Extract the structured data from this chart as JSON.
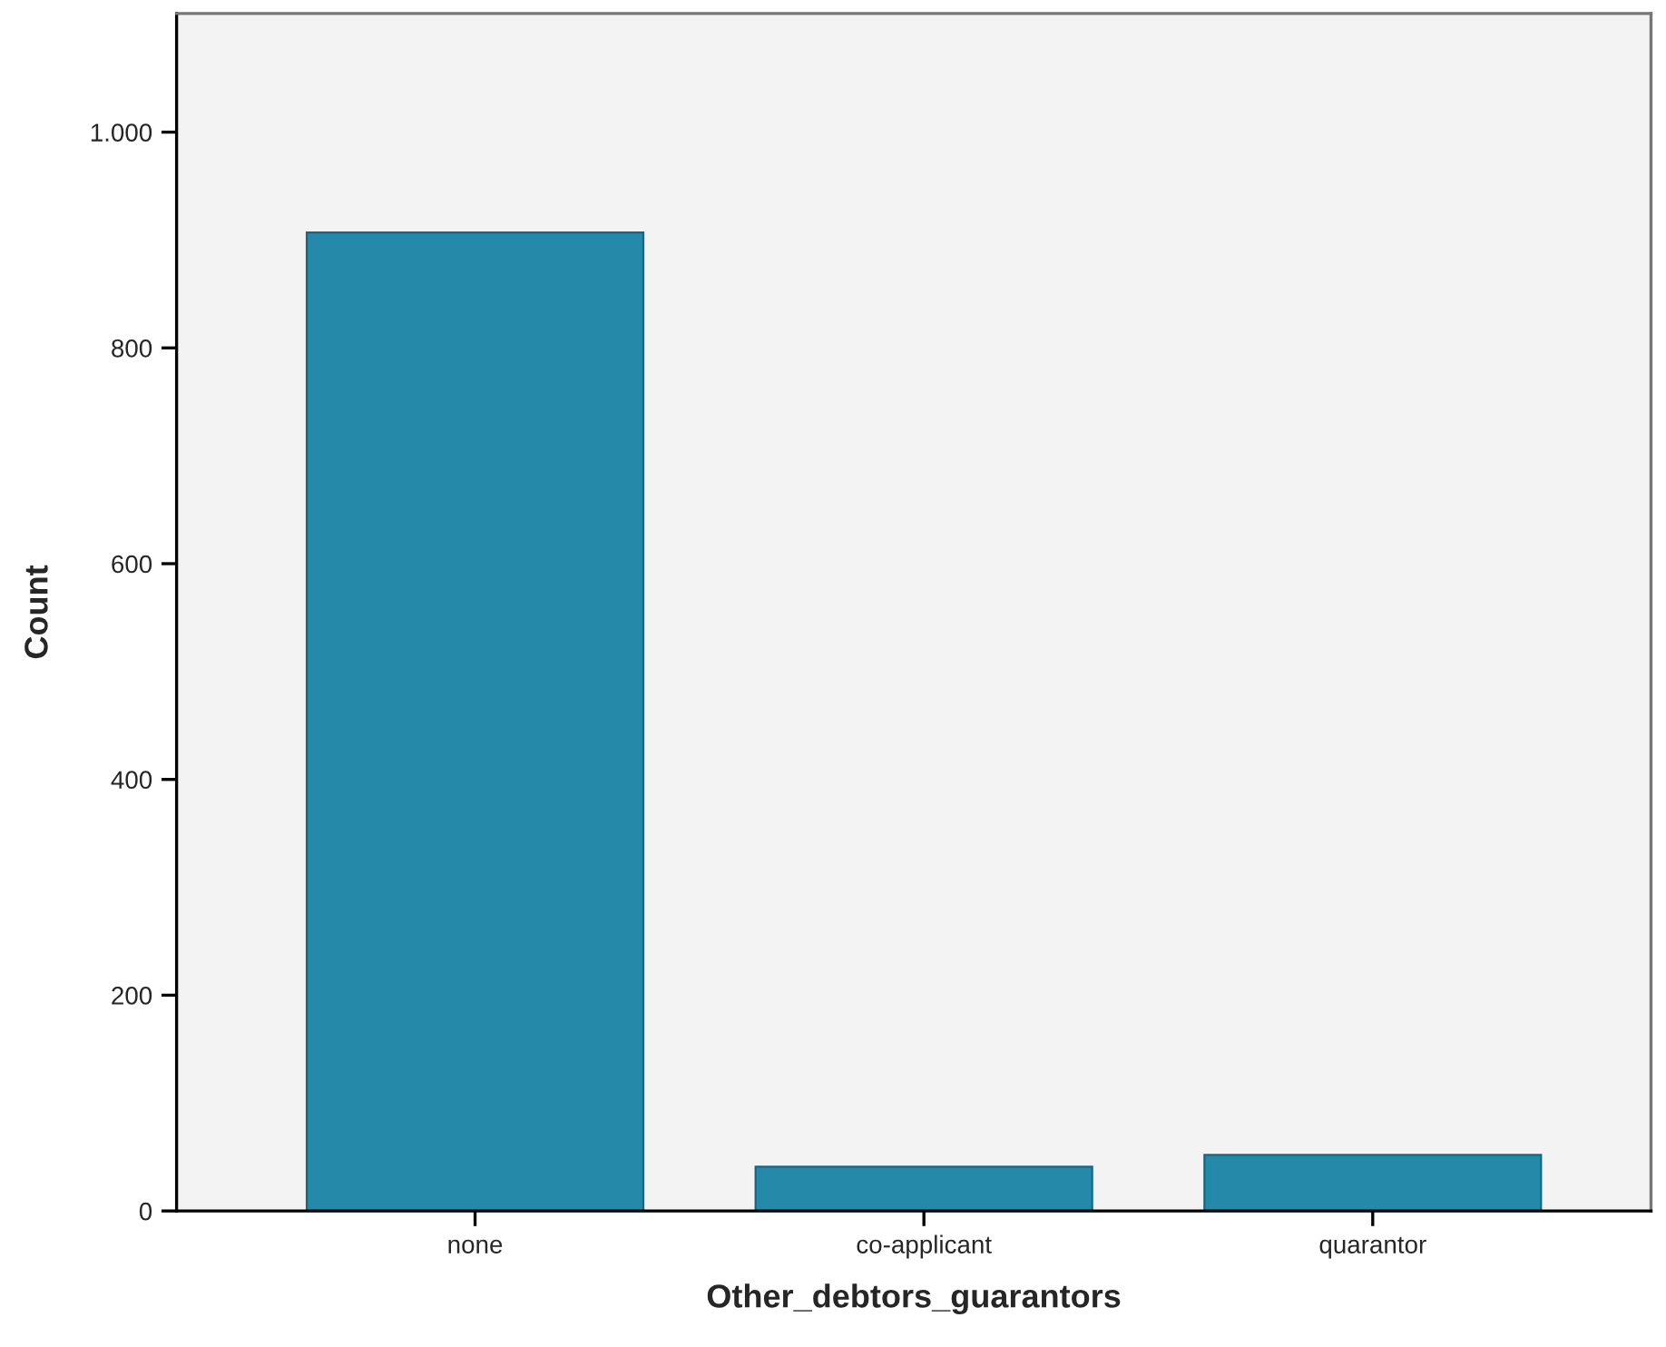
{
  "chart_data": {
    "type": "bar",
    "xlabel": "Other_debtors_guarantors",
    "ylabel": "Count",
    "categories": [
      "none",
      "co-applicant",
      "quarantor"
    ],
    "values": [
      907,
      41,
      52
    ],
    "color": "#2589aa",
    "ylim": [
      0,
      1110
    ],
    "yticks": [
      0,
      200,
      400,
      600,
      800,
      {
        "value": 1000,
        "label": "1.000"
      }
    ],
    "grid": false
  }
}
